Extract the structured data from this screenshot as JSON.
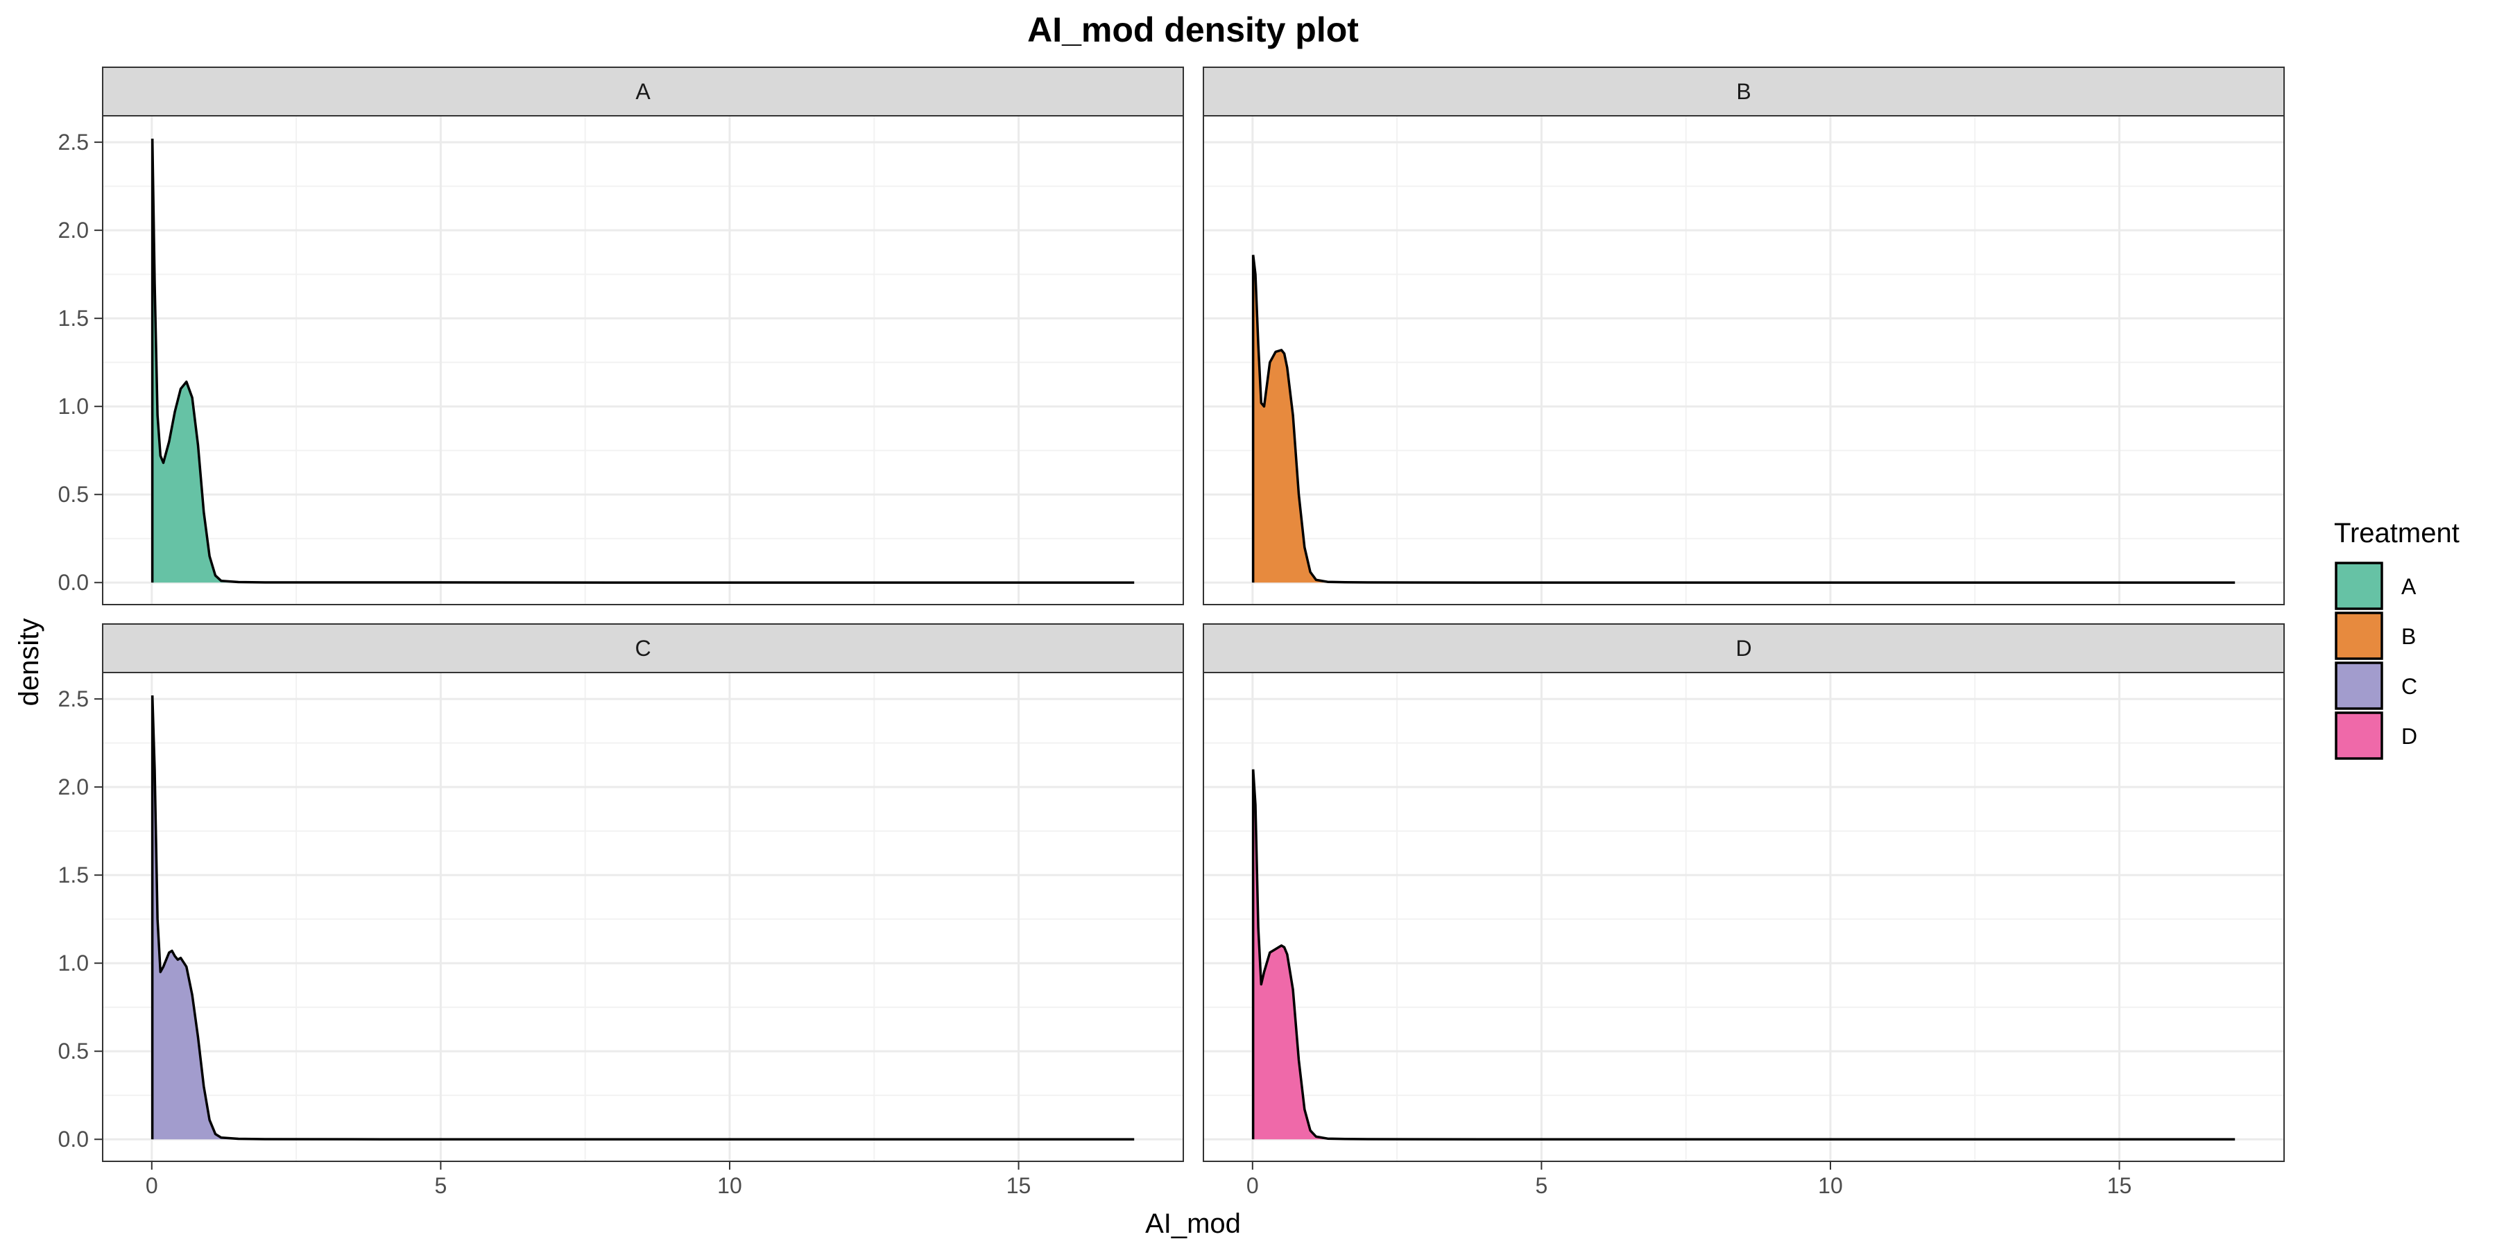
{
  "chart_data": {
    "type": "area",
    "title": "AI_mod density plot",
    "xlabel": "AI_mod",
    "ylabel": "density",
    "xlim": [
      -0.85,
      17.85
    ],
    "ylim": [
      -0.125,
      2.65
    ],
    "x_ticks": [
      0,
      5,
      10,
      15
    ],
    "x_tick_labels": [
      "0",
      "5",
      "10",
      "15"
    ],
    "y_ticks": [
      0,
      0.5,
      1,
      1.5,
      2,
      2.5
    ],
    "y_tick_labels": [
      "0.0",
      "0.5",
      "1.0",
      "1.5",
      "2.0",
      "2.5"
    ],
    "grid": true,
    "legend": {
      "title": "Treatment",
      "position": "right"
    },
    "facets": [
      {
        "label": "A",
        "color": "#66c2a5",
        "x": [
          0.01,
          0.05,
          0.1,
          0.15,
          0.2,
          0.3,
          0.4,
          0.5,
          0.6,
          0.7,
          0.8,
          0.9,
          1.0,
          1.1,
          1.2,
          1.5,
          2,
          4,
          8,
          12,
          17
        ],
        "y": [
          2.52,
          1.7,
          0.95,
          0.72,
          0.68,
          0.8,
          0.97,
          1.1,
          1.14,
          1.05,
          0.78,
          0.4,
          0.15,
          0.04,
          0.01,
          0.003,
          0.001,
          0.001,
          0.0,
          0.0,
          0.0
        ]
      },
      {
        "label": "B",
        "color": "#e78a3e",
        "x": [
          0.01,
          0.05,
          0.1,
          0.15,
          0.2,
          0.3,
          0.4,
          0.5,
          0.55,
          0.6,
          0.7,
          0.8,
          0.9,
          1.0,
          1.1,
          1.3,
          1.6,
          2,
          4,
          8,
          12,
          17
        ],
        "y": [
          1.86,
          1.75,
          1.35,
          1.02,
          1.0,
          1.25,
          1.31,
          1.32,
          1.3,
          1.22,
          0.95,
          0.5,
          0.2,
          0.06,
          0.015,
          0.004,
          0.002,
          0.001,
          0.0,
          0.0,
          0.0,
          0.0
        ]
      },
      {
        "label": "C",
        "color": "#a29ccd",
        "x": [
          0.01,
          0.05,
          0.1,
          0.15,
          0.2,
          0.3,
          0.35,
          0.4,
          0.45,
          0.5,
          0.6,
          0.7,
          0.8,
          0.9,
          1.0,
          1.1,
          1.2,
          1.5,
          2,
          4,
          8,
          12,
          17
        ],
        "y": [
          2.52,
          2.1,
          1.25,
          0.95,
          0.98,
          1.06,
          1.07,
          1.04,
          1.02,
          1.03,
          0.98,
          0.82,
          0.58,
          0.3,
          0.11,
          0.03,
          0.01,
          0.003,
          0.001,
          0.0,
          0.0,
          0.0,
          0.0
        ]
      },
      {
        "label": "D",
        "color": "#ef69a9",
        "x": [
          0.01,
          0.05,
          0.1,
          0.15,
          0.2,
          0.3,
          0.4,
          0.5,
          0.55,
          0.6,
          0.7,
          0.8,
          0.9,
          1.0,
          1.1,
          1.3,
          1.6,
          2,
          4,
          8,
          12,
          17
        ],
        "y": [
          2.1,
          1.9,
          1.2,
          0.88,
          0.95,
          1.06,
          1.08,
          1.1,
          1.09,
          1.05,
          0.85,
          0.45,
          0.17,
          0.05,
          0.015,
          0.004,
          0.002,
          0.001,
          0.0,
          0.0,
          0.0,
          0.0
        ]
      }
    ]
  }
}
